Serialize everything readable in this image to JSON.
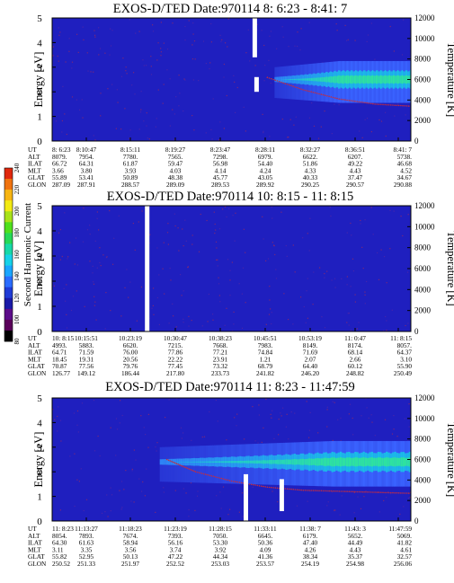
{
  "colors": {
    "background": "#1f1fbf",
    "band_blue": "#3a63ff",
    "band_cyan": "#19bfe6",
    "band_green": "#2ee2a0",
    "trace_red": "#c42d40",
    "gap_white": "#ffffff"
  },
  "colorbar": {
    "label": "Second Harmonic Current",
    "ticks": [
      "240",
      "220",
      "200",
      "180",
      "160",
      "140",
      "120",
      "100",
      "80"
    ],
    "segments": [
      "#000000",
      "#5a005a",
      "#5c0d8a",
      "#1a1aa8",
      "#1f3bd6",
      "#2a6cff",
      "#1aa6ff",
      "#16d2e8",
      "#17d9a8",
      "#26d957",
      "#4fe01d",
      "#a8e21a",
      "#f2ea14",
      "#f7b512",
      "#f0730f",
      "#e0280d"
    ]
  },
  "chart_data": [
    {
      "type": "heatmap",
      "title": "EXOS-D/TED   Date:970114   8: 6:23 - 8:41: 7",
      "ylabel": "Energy [eV]",
      "y2label": "Temperature [K]",
      "ylim": [
        0,
        5
      ],
      "y2lim": [
        0,
        12000
      ],
      "yticks": [
        "0",
        "1",
        "2",
        "3",
        "4",
        "5"
      ],
      "y2ticks": [
        "0",
        "2000",
        "4000",
        "6000",
        "8000",
        "10000",
        "12000"
      ],
      "ephemeris_rows": [
        [
          "UT",
          "8: 6:23",
          "8:10:47",
          "8:15:11",
          "8:19:27",
          "8:23:47",
          "8:28:11",
          "8:32:27",
          "8:36:51",
          "8:41: 7"
        ],
        [
          "ALT",
          "8079.",
          "7954.",
          "7780.",
          "7565.",
          "7298.",
          "6979.",
          "6622.",
          "6207.",
          "5738."
        ],
        [
          "ILAT",
          "66.72",
          "64.31",
          "61.87",
          "59.47",
          "56.98",
          "54.40",
          "51.86",
          "49.22",
          "46.68"
        ],
        [
          "MLT",
          "3.66",
          "3.80",
          "3.93",
          "4.03",
          "4.14",
          "4.24",
          "4.33",
          "4.43",
          "4.52"
        ],
        [
          "GLAT",
          "55.89",
          "53.41",
          "50.89",
          "48.38",
          "45.77",
          "43.05",
          "40.33",
          "37.47",
          "34.67"
        ],
        [
          "GLON",
          "287.09",
          "287.91",
          "288.57",
          "289.09",
          "289.53",
          "289.92",
          "290.25",
          "290.57",
          "290.88"
        ]
      ],
      "spectral_band": {
        "start_fraction": 0.62,
        "ramp_end_fraction": 0.8,
        "center_energy": 2.5,
        "upper_energy": 3.0,
        "lower_energy": 1.75
      },
      "temperature_trace": {
        "x_fraction": [
          0.6,
          0.7,
          0.8,
          0.9,
          1.0
        ],
        "temperature_K": [
          6200,
          5000,
          4100,
          3600,
          3400
        ]
      },
      "data_gaps": [
        {
          "x_fraction": 0.565,
          "energy_range": [
            3.4,
            5.0
          ]
        },
        {
          "x_fraction": 0.57,
          "energy_range": [
            2.0,
            2.6
          ]
        }
      ]
    },
    {
      "type": "heatmap",
      "title": "EXOS-D/TED   Date:970114   10: 8:15 - 11: 8:15",
      "ylabel": "Energy [eV]",
      "y2label": "Temperature [K]",
      "ylim": [
        0,
        5
      ],
      "y2lim": [
        0,
        12000
      ],
      "yticks": [
        "0",
        "1",
        "2",
        "3",
        "4",
        "5"
      ],
      "y2ticks": [
        "0",
        "2000",
        "4000",
        "6000",
        "8000",
        "10000",
        "12000"
      ],
      "ephemeris_rows": [
        [
          "UT",
          "10: 8:15",
          "10:15:51",
          "10:23:19",
          "10:30:47",
          "10:38:23",
          "10:45:51",
          "10:53:19",
          "11: 0:47",
          "11: 8:15"
        ],
        [
          "ALT",
          "4993.",
          "5883.",
          "6620.",
          "7215.",
          "7668.",
          "7983.",
          "8149.",
          "8174.",
          "8057."
        ],
        [
          "ILAT",
          "64.71",
          "71.59",
          "76.00",
          "77.86",
          "77.21",
          "74.84",
          "71.69",
          "68.14",
          "64.37"
        ],
        [
          "MLT",
          "18.45",
          "19.31",
          "20.56",
          "22.22",
          "23.91",
          "1.21",
          "2.07",
          "2.66",
          "3.10"
        ],
        [
          "GLAT",
          "70.87",
          "77.56",
          "79.76",
          "77.45",
          "73.32",
          "68.79",
          "64.40",
          "60.12",
          "55.90"
        ],
        [
          "GLON",
          "126.77",
          "149.12",
          "186.44",
          "217.80",
          "233.73",
          "241.82",
          "246.20",
          "248.82",
          "250.49"
        ]
      ],
      "data_gaps": [
        {
          "x_fraction": 0.265,
          "energy_range": [
            0,
            5.0
          ]
        }
      ]
    },
    {
      "type": "heatmap",
      "title": "EXOS-D/TED   Date:970114   11: 8:23 - 11:47:59",
      "ylabel": "Energy [eV]",
      "y2label": "Temperature [K]",
      "ylim": [
        0,
        5
      ],
      "y2lim": [
        0,
        12000
      ],
      "yticks": [
        "0",
        "1",
        "2",
        "3",
        "4",
        "5"
      ],
      "y2ticks": [
        "0",
        "2000",
        "4000",
        "6000",
        "8000",
        "10000",
        "12000"
      ],
      "ephemeris_rows": [
        [
          "UT",
          "11: 8:23",
          "11:13:27",
          "11:18:23",
          "11:23:19",
          "11:28:15",
          "11:33:11",
          "11:38: 7",
          "11:43: 3",
          "11:47:59"
        ],
        [
          "ALT",
          "8054.",
          "7893.",
          "7674.",
          "7393.",
          "7050.",
          "6645.",
          "6179.",
          "5652.",
          "5069."
        ],
        [
          "ILAT",
          "64.30",
          "61.63",
          "58.94",
          "56.16",
          "53.30",
          "50.36",
          "47.40",
          "44.49",
          "41.82"
        ],
        [
          "MLT",
          "3.11",
          "3.35",
          "3.56",
          "3.74",
          "3.92",
          "4.09",
          "4.26",
          "4.43",
          "4.61"
        ],
        [
          "GLAT",
          "55.82",
          "52.95",
          "50.13",
          "47.22",
          "44.34",
          "41.36",
          "38.34",
          "35.37",
          "32.57"
        ],
        [
          "GLON",
          "250.52",
          "251.33",
          "251.97",
          "252.52",
          "253.03",
          "253.57",
          "254.19",
          "254.98",
          "256.06"
        ]
      ],
      "spectral_band": {
        "start_fraction": 0.3,
        "ramp_end_fraction": 0.78,
        "center_energy": 2.4,
        "upper_energy": 3.0,
        "lower_energy": 1.6
      },
      "temperature_trace": {
        "x_fraction": [
          0.32,
          0.4,
          0.5,
          0.6,
          0.7,
          0.8,
          0.9,
          1.0
        ],
        "temperature_K": [
          6000,
          4800,
          3900,
          3300,
          3000,
          2900,
          2800,
          2700
        ]
      },
      "data_gaps": [
        {
          "x_fraction": 0.54,
          "energy_range": [
            0,
            1.9
          ]
        },
        {
          "x_fraction": 0.64,
          "energy_range": [
            0.4,
            1.7
          ]
        }
      ]
    }
  ]
}
